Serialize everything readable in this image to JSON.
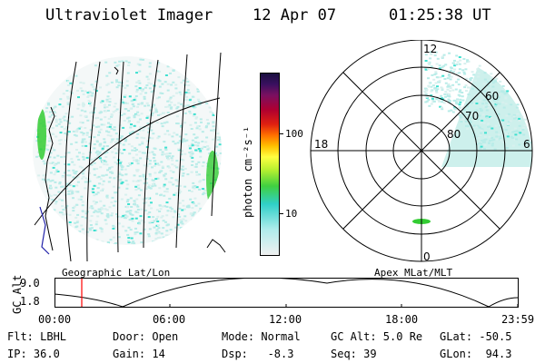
{
  "header": {
    "instrument": "Ultraviolet Imager",
    "date": "12 Apr 07",
    "time": "01:25:38 UT"
  },
  "colorbar": {
    "unit_label": "photon cm⁻²s⁻¹",
    "ticks": [
      "100",
      "10"
    ]
  },
  "geographic_panel": {
    "caption": "Geographic Lat/Lon"
  },
  "polar_panel": {
    "caption": "Apex MLat/MLT",
    "mlt_labels": [
      "12",
      "18",
      "6",
      "0"
    ],
    "mlat_labels": [
      "60",
      "70",
      "80"
    ]
  },
  "altitude_plot": {
    "ylabel": "GC Alt",
    "yticks": [
      "9.0",
      "1.8"
    ],
    "xticks": [
      "00:00",
      "06:00",
      "12:00",
      "18:00",
      "23:59"
    ]
  },
  "footer": {
    "flt": "Flt: LBHL",
    "ip": "IP: 36.0",
    "door": "Door: Open",
    "gain": "Gain: 14",
    "mode": "Mode: Normal",
    "dsp": "Dsp:   -8.3",
    "gcalt": "GC Alt: 5.0 Re",
    "seq": "Seq: 39",
    "glat": "GLat: -50.5",
    "glon": "GLon:  94.3"
  },
  "colors": {
    "emission_low": "#b8ece8",
    "emission_mid": "#3fe0d0",
    "emission_high": "#33cc33",
    "current_time_marker": "#ff0000"
  }
}
